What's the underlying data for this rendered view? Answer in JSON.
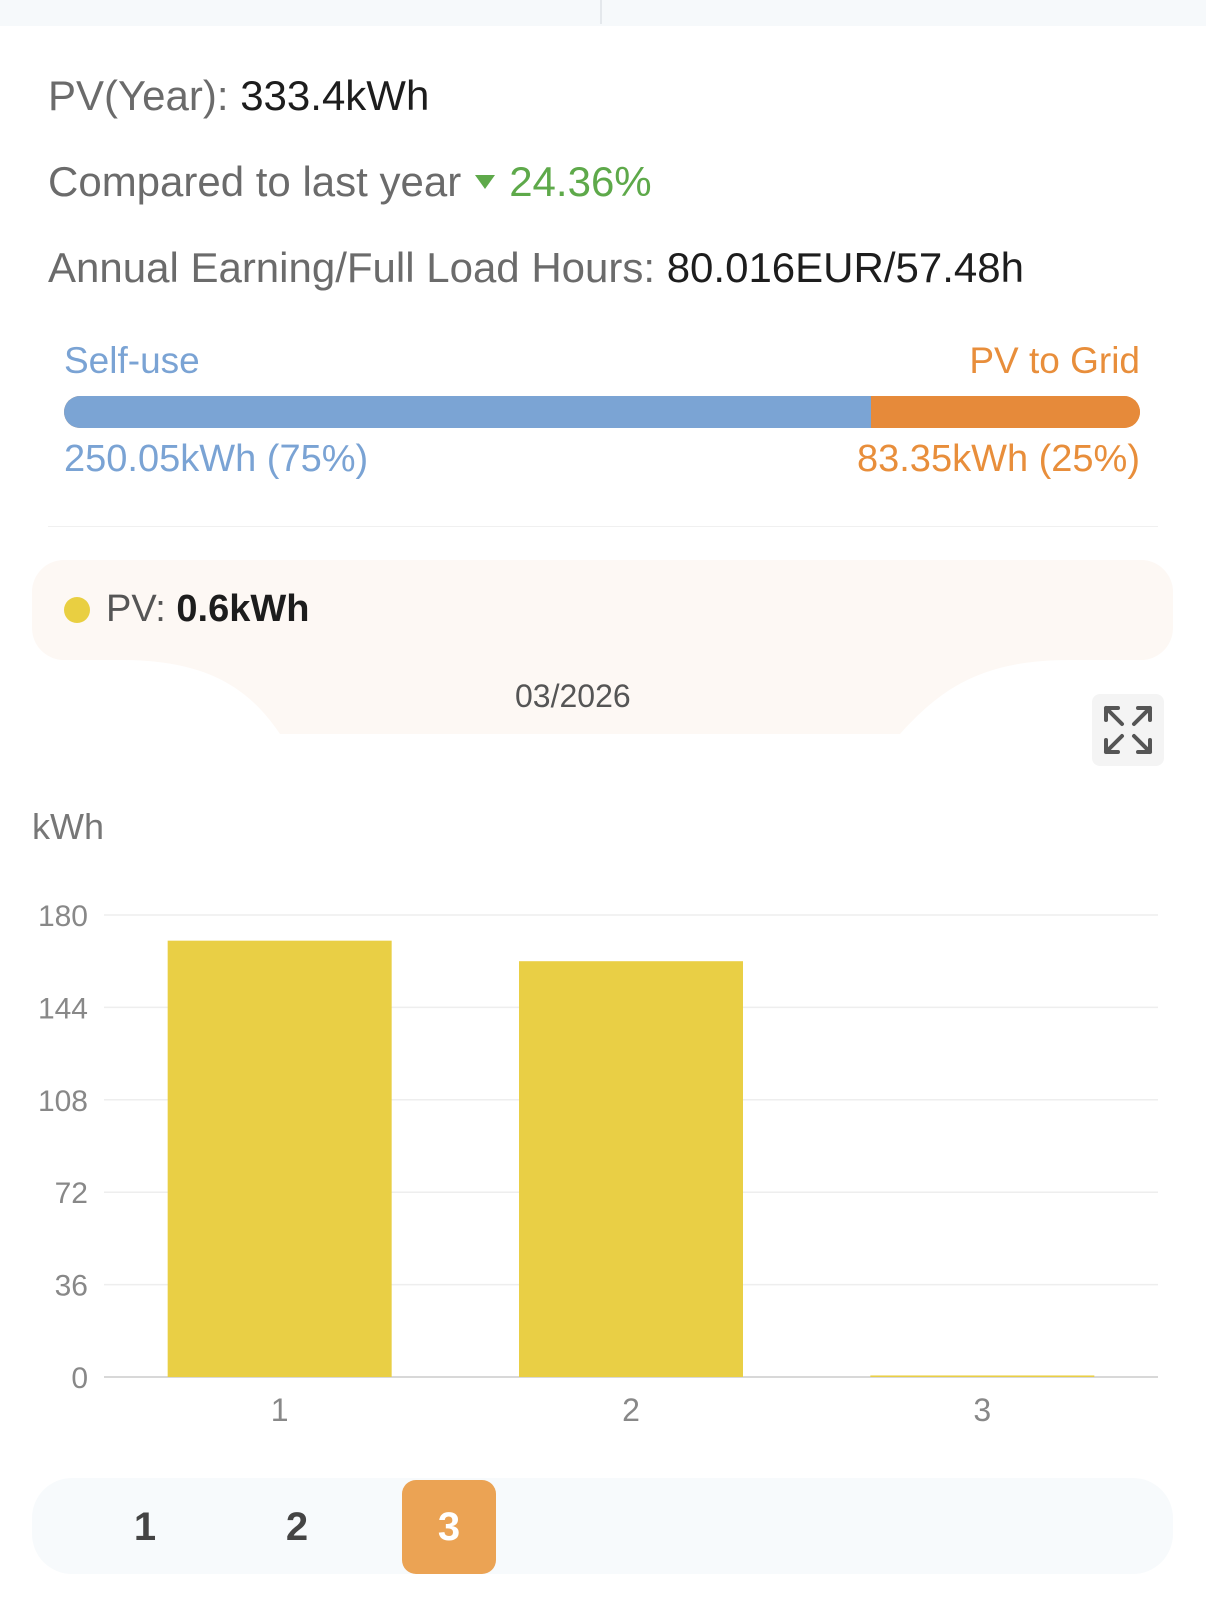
{
  "stats": {
    "pv_label": "PV(Year):",
    "pv_value": "333.4kWh",
    "compare_label": "Compared to last year",
    "compare_value": "24.36%",
    "earning_label": "Annual Earning/Full Load Hours:",
    "earning_value": "80.016EUR/57.48h"
  },
  "split": {
    "self_use_label": "Self-use",
    "grid_label": "PV to Grid",
    "self_use_value": "250.05kWh (75%)",
    "grid_value": "83.35kWh (25%)",
    "self_use_fraction": 0.75,
    "colors": {
      "self_use": "#7ba4d4",
      "grid": "#e68a3a"
    }
  },
  "tooltip": {
    "series_label": "PV:",
    "series_value": "0.6kWh",
    "date": "03/2026"
  },
  "icons": {
    "expand": "expand-arrows-icon",
    "indicator": "triangle-down-icon"
  },
  "chart_data": {
    "type": "bar",
    "ylabel": "kWh",
    "categories": [
      "1",
      "2",
      "3"
    ],
    "values": [
      170,
      162,
      0.6
    ],
    "ylim": [
      0,
      180
    ],
    "yticks": [
      0,
      36,
      72,
      108,
      144,
      180
    ],
    "grid": true,
    "color": "#e9cf45"
  },
  "pager": {
    "tabs": [
      "1",
      "2",
      "3"
    ],
    "active_index": 2
  }
}
